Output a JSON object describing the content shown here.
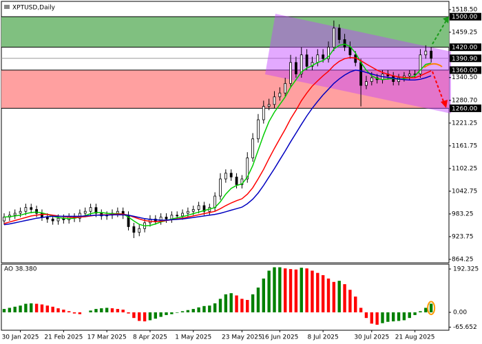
{
  "chart_data": [
    {
      "type": "candlestick",
      "title": "XPTUSD,Daily",
      "open": [
        965,
        975,
        980,
        985,
        990,
        1000,
        995,
        985,
        975,
        970,
        965,
        972,
        968,
        975,
        972,
        985,
        990,
        1000,
        985,
        978,
        980,
        985,
        990,
        980,
        950,
        935,
        945,
        960,
        970,
        965,
        975,
        970,
        980,
        978,
        985,
        990,
        995,
        1005,
        990,
        1000,
        1030,
        1075,
        1090,
        1080,
        1060,
        1075,
        1130,
        1180,
        1230,
        1265,
        1270,
        1290,
        1300,
        1325,
        1380,
        1350,
        1400,
        1370,
        1380,
        1400,
        1390,
        1420,
        1470,
        1440,
        1420,
        1400,
        1380,
        1320,
        1330,
        1340,
        1335,
        1350,
        1345,
        1330,
        1340,
        1345,
        1350,
        1350,
        1400,
        1410
      ],
      "high": [
        985,
        990,
        995,
        1000,
        1010,
        1010,
        1005,
        995,
        985,
        980,
        982,
        982,
        985,
        985,
        995,
        1000,
        1010,
        1010,
        995,
        990,
        995,
        1000,
        1000,
        990,
        960,
        955,
        970,
        980,
        980,
        985,
        985,
        990,
        990,
        995,
        1000,
        1005,
        1015,
        1015,
        1010,
        1040,
        1090,
        1100,
        1100,
        1090,
        1085,
        1145,
        1195,
        1245,
        1280,
        1285,
        1305,
        1315,
        1340,
        1400,
        1395,
        1420,
        1415,
        1395,
        1415,
        1415,
        1435,
        1490,
        1480,
        1455,
        1435,
        1410,
        1390,
        1345,
        1355,
        1350,
        1360,
        1360,
        1355,
        1350,
        1355,
        1360,
        1360,
        1415,
        1425,
        1420
      ],
      "low": [
        955,
        965,
        970,
        975,
        980,
        985,
        975,
        965,
        960,
        955,
        955,
        958,
        958,
        962,
        962,
        975,
        980,
        975,
        968,
        968,
        970,
        975,
        970,
        940,
        920,
        925,
        935,
        950,
        955,
        955,
        960,
        960,
        968,
        968,
        975,
        980,
        985,
        980,
        980,
        990,
        1020,
        1065,
        1070,
        1050,
        1050,
        1065,
        1120,
        1170,
        1220,
        1255,
        1260,
        1280,
        1290,
        1315,
        1340,
        1340,
        1360,
        1360,
        1370,
        1380,
        1380,
        1410,
        1430,
        1410,
        1390,
        1370,
        1265,
        1310,
        1320,
        1325,
        1325,
        1335,
        1320,
        1320,
        1330,
        1335,
        1340,
        1340,
        1390,
        1380
      ],
      "close": [
        975,
        980,
        985,
        990,
        1000,
        995,
        985,
        975,
        970,
        965,
        972,
        968,
        975,
        972,
        985,
        990,
        1000,
        985,
        978,
        980,
        985,
        990,
        980,
        950,
        935,
        945,
        960,
        970,
        965,
        975,
        970,
        980,
        978,
        985,
        990,
        995,
        1005,
        990,
        1000,
        1030,
        1075,
        1090,
        1080,
        1060,
        1075,
        1130,
        1180,
        1230,
        1265,
        1270,
        1290,
        1300,
        1325,
        1380,
        1350,
        1400,
        1370,
        1380,
        1400,
        1390,
        1420,
        1470,
        1440,
        1420,
        1400,
        1380,
        1320,
        1330,
        1340,
        1335,
        1350,
        1345,
        1330,
        1340,
        1345,
        1350,
        1350,
        1400,
        1410,
        1390.9
      ],
      "series": [
        {
          "color": "#00cc00",
          "values": [
            975,
            976,
            978,
            980,
            984,
            987,
            988,
            986,
            982,
            977,
            974,
            972,
            971,
            972,
            975,
            979,
            984,
            987,
            987,
            985,
            984,
            984,
            983,
            975,
            965,
            956,
            952,
            953,
            957,
            962,
            966,
            970,
            973,
            976,
            980,
            984,
            988,
            992,
            996,
            1000,
            1015,
            1035,
            1050,
            1058,
            1062,
            1080,
            1110,
            1150,
            1190,
            1225,
            1250,
            1270,
            1290,
            1315,
            1335,
            1355,
            1365,
            1372,
            1380,
            1385,
            1395,
            1415,
            1425,
            1428,
            1422,
            1405,
            1380,
            1360,
            1345,
            1338,
            1335,
            1337,
            1338,
            1336,
            1338,
            1340,
            1345,
            1360,
            1375,
            1378
          ]
        },
        {
          "color": "#ff0000",
          "values": [
            958,
            962,
            966,
            970,
            974,
            978,
            980,
            982,
            982,
            980,
            978,
            976,
            975,
            974,
            975,
            976,
            978,
            980,
            981,
            981,
            982,
            983,
            983,
            980,
            975,
            970,
            966,
            964,
            963,
            964,
            966,
            968,
            970,
            972,
            975,
            978,
            981,
            984,
            987,
            990,
            997,
            1005,
            1012,
            1018,
            1023,
            1035,
            1052,
            1075,
            1100,
            1128,
            1155,
            1180,
            1205,
            1232,
            1255,
            1280,
            1300,
            1318,
            1332,
            1345,
            1357,
            1372,
            1383,
            1390,
            1393,
            1392,
            1385,
            1376,
            1368,
            1360,
            1354,
            1349,
            1345,
            1342,
            1341,
            1340,
            1340,
            1345,
            1352,
            1358
          ]
        },
        {
          "color": "#0000c0",
          "values": [
            955,
            957,
            960,
            963,
            966,
            969,
            972,
            974,
            976,
            977,
            977,
            977,
            977,
            977,
            977,
            978,
            979,
            980,
            980,
            980,
            981,
            981,
            981,
            980,
            977,
            974,
            971,
            969,
            968,
            967,
            967,
            968,
            969,
            970,
            972,
            974,
            976,
            978,
            980,
            982,
            985,
            989,
            993,
            997,
            1001,
            1010,
            1022,
            1038,
            1058,
            1080,
            1102,
            1125,
            1148,
            1172,
            1195,
            1218,
            1240,
            1260,
            1278,
            1295,
            1310,
            1325,
            1337,
            1347,
            1355,
            1360,
            1358,
            1354,
            1350,
            1346,
            1343,
            1341,
            1339,
            1337,
            1335,
            1334,
            1334,
            1336,
            1340,
            1345
          ]
        }
      ],
      "ylim": [
        853.4,
        1543.7
      ],
      "yticks": [
        {
          "value": 1518.5,
          "label": "1518.50"
        },
        1459.25,
        {
          "value": 1340.5,
          "label": "1340.50"
        },
        {
          "value": 1280.7,
          "label": "1280.70"
        },
        1221.25,
        1161.75,
        1102.25,
        1042.75,
        983.25,
        923.75,
        864.25
      ],
      "levels": [
        {
          "value": 1500,
          "label": "1500.00"
        },
        {
          "value": 1420,
          "label": "1420.00"
        },
        {
          "value": 1390.9,
          "label": "1390.90"
        },
        {
          "value": 1360,
          "label": "1360.00"
        },
        {
          "value": 1260,
          "label": "1260.00"
        }
      ],
      "zones": [
        {
          "from": 1420,
          "to": 1500,
          "color": "#80c080"
        },
        {
          "from": 1260,
          "to": 1360,
          "color": "#ffa0a0"
        }
      ],
      "up_color": "#ffffff",
      "down_color": "#000000"
    },
    {
      "type": "bar",
      "title": "AO 38.380",
      "categories": [
        null,
        null,
        null,
        "30 Jan 2025",
        null,
        null,
        null,
        null,
        null,
        null,
        null,
        "21 Feb 2025",
        null,
        null,
        null,
        null,
        null,
        null,
        null,
        "17 Mar 2025",
        null,
        null,
        null,
        null,
        null,
        null,
        null,
        "8 Apr 2025",
        null,
        null,
        null,
        null,
        null,
        null,
        null,
        "1 May 2025",
        null,
        null,
        null,
        null,
        null,
        null,
        null,
        null,
        "23 May 2025",
        null,
        null,
        null,
        null,
        null,
        null,
        "16 Jun 2025",
        null,
        null,
        null,
        null,
        null,
        null,
        null,
        "8 Jul 2025",
        null,
        null,
        null,
        null,
        null,
        null,
        null,
        null,
        "30 Jul 2025",
        null,
        null,
        null,
        null,
        null,
        null,
        null,
        "21 Aug 2025",
        null,
        null,
        null
      ],
      "values": [
        15,
        20,
        25,
        30,
        38,
        40,
        38,
        35,
        30,
        25,
        18,
        12,
        5,
        -5,
        -8,
        0,
        8,
        15,
        18,
        20,
        18,
        15,
        12,
        -5,
        -25,
        -38,
        -40,
        -35,
        -28,
        -20,
        -12,
        -8,
        -2,
        5,
        10,
        15,
        22,
        28,
        30,
        40,
        60,
        80,
        85,
        75,
        60,
        55,
        80,
        110,
        150,
        185,
        200,
        200,
        195,
        192,
        190,
        198,
        195,
        185,
        175,
        165,
        150,
        135,
        140,
        125,
        100,
        70,
        20,
        -25,
        -50,
        -55,
        -48,
        -42,
        -40,
        -38,
        -35,
        -25,
        -12,
        5,
        20,
        38.38
      ],
      "ylim": [
        -79.4,
        213.7
      ],
      "yticks": [
        192.325,
        {
          "value": 0,
          "label": "0.00"
        },
        -65.652
      ],
      "up_color": "#008000",
      "down_color": "#ff0000"
    }
  ]
}
